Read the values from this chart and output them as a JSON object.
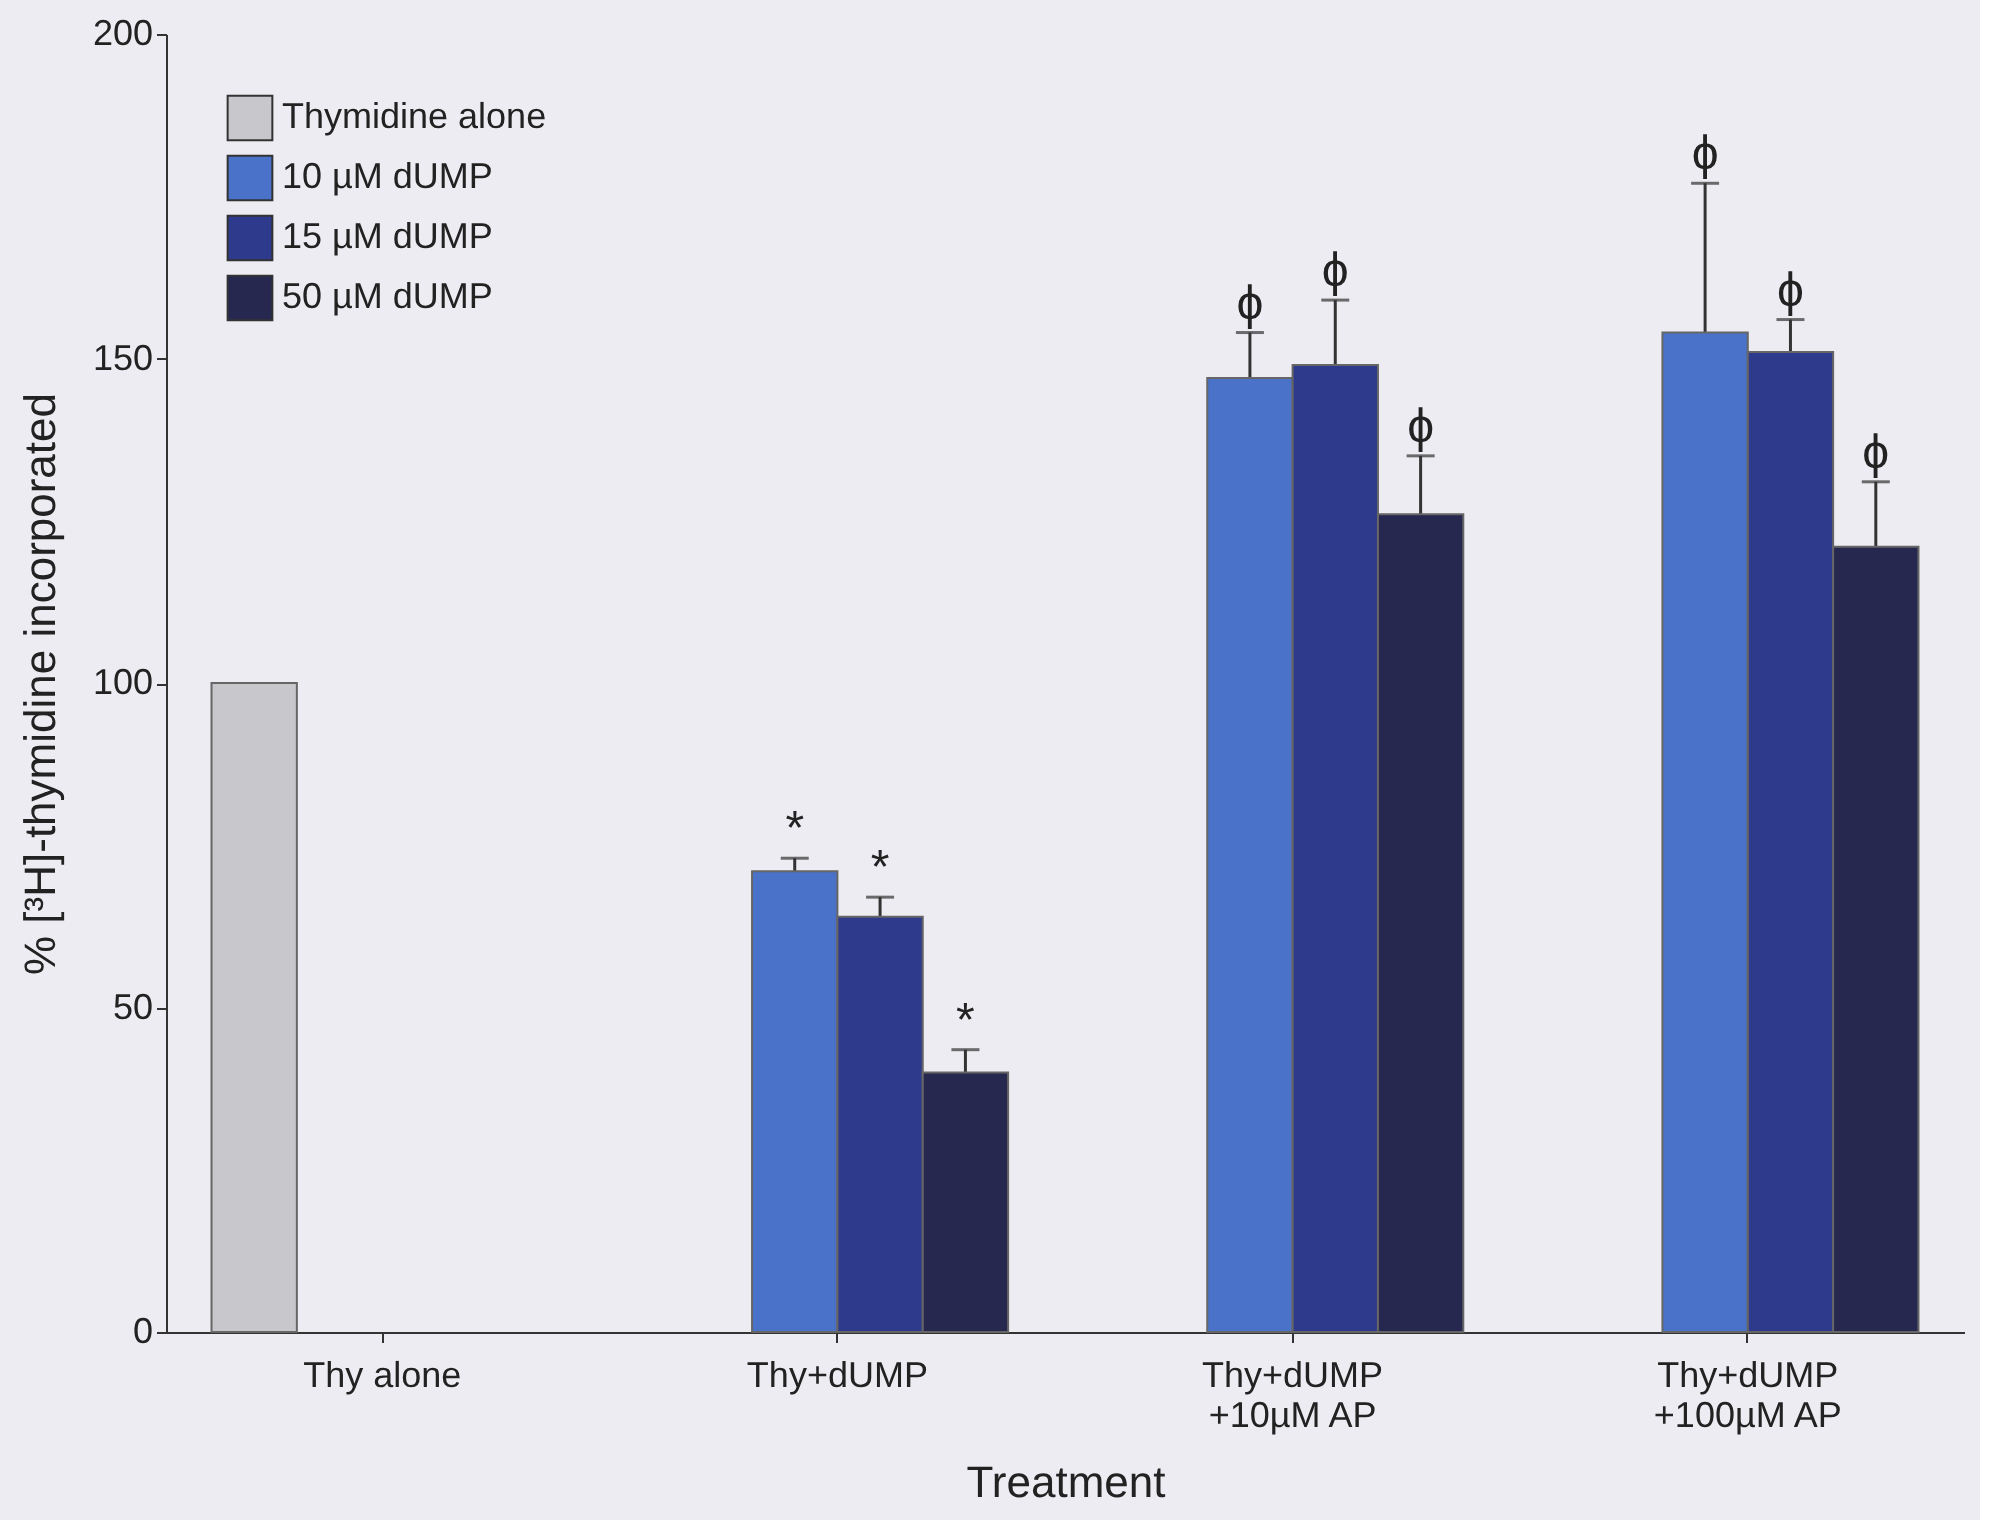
{
  "chart_data": {
    "type": "bar",
    "xlabel": "Treatment",
    "ylabel": "% [³H]-thymidine incorporated",
    "categories": [
      "Thy alone",
      "Thy+dUMP",
      "Thy+dUMP\n+10µM AP",
      "Thy+dUMP\n+100µM AP"
    ],
    "series": [
      {
        "name": "Thymidine alone",
        "color": "#c8c8cc",
        "values": [
          100,
          null,
          null,
          null
        ],
        "errors": [
          null,
          null,
          null,
          null
        ]
      },
      {
        "name": "10 µM dUMP",
        "color": "#4a72c8",
        "values": [
          null,
          71,
          147,
          154
        ],
        "errors": [
          null,
          2,
          7,
          23
        ],
        "value_labels": [
          null,
          "*",
          "ϕ",
          "ϕ"
        ]
      },
      {
        "name": "15 µM dUMP",
        "color": "#2e3a8c",
        "values": [
          null,
          64,
          149,
          151
        ],
        "errors": [
          null,
          3,
          10,
          5
        ],
        "value_labels": [
          null,
          "*",
          "ϕ",
          "ϕ"
        ]
      },
      {
        "name": "50 µM dUMP",
        "color": "#262850",
        "values": [
          null,
          40,
          126,
          121
        ],
        "errors": [
          null,
          3.5,
          9,
          10
        ],
        "value_labels": [
          null,
          "*",
          "ϕ",
          "ϕ"
        ]
      }
    ],
    "ylim": [
      0,
      200
    ],
    "yticks": [
      0,
      50,
      100,
      150,
      200
    ],
    "grid": false,
    "legend": "top left"
  }
}
